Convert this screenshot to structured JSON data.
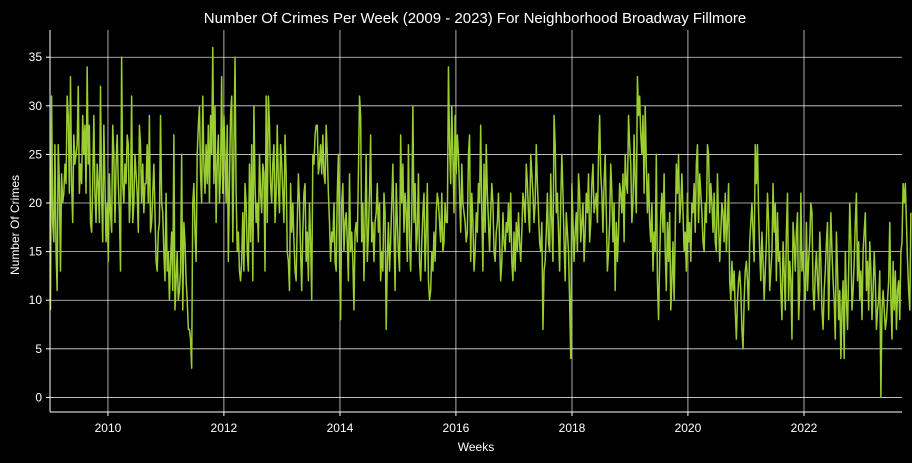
{
  "chart_data": {
    "type": "line",
    "title": "Number Of Crimes Per Week (2009 - 2023) For Neighborhood Broadway Fillmore",
    "xlabel": "Weeks",
    "ylabel": "Number Of Crimes",
    "x_start": "2009-01-04",
    "x_interval": "weekly",
    "xlim": [
      "2009-01-01",
      "2023-09-10"
    ],
    "ylim": [
      -1.5,
      37.8
    ],
    "x_ticks": [
      "2010",
      "2012",
      "2014",
      "2016",
      "2018",
      "2020",
      "2022"
    ],
    "y_ticks": [
      0,
      5,
      10,
      15,
      20,
      25,
      30,
      35
    ],
    "grid": true,
    "line_color": "#9acd32",
    "background": "#000000",
    "text_color": "#ffffff",
    "series": [
      {
        "values": [
          9,
          31,
          18,
          16,
          26,
          15,
          11,
          26,
          22,
          13,
          23,
          20,
          21,
          24,
          22,
          31,
          29,
          21,
          33,
          22,
          18,
          27,
          24,
          25,
          26,
          32,
          21,
          24,
          22,
          29,
          25,
          28,
          21,
          34,
          24,
          28,
          18,
          17,
          22,
          29,
          21,
          18,
          24,
          22,
          18,
          32,
          21,
          16,
          28,
          22,
          16,
          20,
          14,
          23,
          19,
          17,
          28,
          25,
          18,
          24,
          27,
          22,
          19,
          13,
          35,
          22,
          20,
          24,
          22,
          27,
          26,
          18,
          21,
          31,
          18,
          20,
          25,
          23,
          21,
          17,
          28,
          26,
          20,
          24,
          19,
          22,
          22,
          26,
          20,
          29,
          17,
          18,
          21,
          24,
          19,
          14,
          13,
          17,
          18,
          29,
          20,
          19,
          15,
          12,
          21,
          13,
          15,
          10,
          14,
          17,
          11,
          27,
          9,
          12,
          15,
          10,
          11,
          13,
          25,
          9,
          18,
          16,
          12,
          10,
          7,
          7,
          6,
          3,
          20,
          22,
          17,
          14,
          25,
          28,
          30,
          23,
          20,
          31,
          24,
          21,
          26,
          22,
          28,
          20,
          29,
          25,
          36,
          22,
          30,
          18,
          24,
          27,
          20,
          23,
          33,
          21,
          29,
          25,
          20,
          28,
          14,
          22,
          29,
          31,
          16,
          25,
          35,
          21,
          15,
          17,
          13,
          12,
          14,
          19,
          13,
          22,
          20,
          15,
          13,
          24,
          16,
          26,
          12,
          30,
          22,
          18,
          20,
          16,
          25,
          21,
          19,
          24,
          23,
          13,
          31,
          18,
          31,
          28,
          22,
          20,
          24,
          26,
          18,
          21,
          28,
          22,
          19,
          26,
          24,
          21,
          18,
          27,
          23,
          15,
          14,
          11,
          22,
          17,
          20,
          16,
          13,
          12,
          18,
          23,
          20,
          15,
          11,
          17,
          21,
          22,
          14,
          17,
          12,
          20,
          16,
          10,
          25,
          24,
          27,
          28,
          28,
          23,
          24,
          26,
          23,
          27,
          23,
          22,
          28,
          25,
          21,
          18,
          14,
          17,
          16,
          20,
          14,
          13,
          21,
          25,
          14,
          8,
          20,
          22,
          15,
          18,
          19,
          16,
          12,
          23,
          15,
          17,
          14,
          9,
          17,
          18,
          16,
          23,
          31,
          29,
          16,
          20,
          12,
          18,
          25,
          14,
          17,
          21,
          27,
          16,
          18,
          14,
          18,
          19,
          22,
          17,
          20,
          12,
          15,
          13,
          21,
          19,
          7,
          14,
          18,
          13,
          16,
          20,
          24,
          17,
          11,
          22,
          18,
          15,
          13,
          27,
          20,
          24,
          17,
          21,
          19,
          14,
          26,
          16,
          13,
          19,
          30,
          18,
          22,
          15,
          17,
          23,
          14,
          12,
          16,
          19,
          21,
          13,
          17,
          22,
          12,
          10,
          11,
          15,
          13,
          17,
          14,
          19,
          21,
          20,
          18,
          16,
          21,
          15,
          16,
          20,
          18,
          18,
          34,
          26,
          22,
          30,
          25,
          19,
          29,
          23,
          27,
          25,
          21,
          17,
          24,
          20,
          19,
          18,
          16,
          17,
          25,
          27,
          14,
          21,
          18,
          13,
          15,
          19,
          17,
          22,
          20,
          28,
          19,
          13,
          24,
          17,
          26,
          21,
          18,
          15,
          19,
          22,
          20,
          15,
          14,
          17,
          18,
          21,
          16,
          12,
          14,
          19,
          16,
          15,
          18,
          17,
          20,
          16,
          21,
          14,
          12,
          17,
          13,
          18,
          15,
          19,
          16,
          14,
          17,
          21,
          20,
          18,
          24,
          22,
          19,
          17,
          25,
          23,
          21,
          18,
          20,
          26,
          22,
          19,
          16,
          15,
          18,
          7,
          13,
          14,
          17,
          21,
          16,
          15,
          23,
          18,
          14,
          29,
          26,
          19,
          21,
          17,
          13,
          20,
          25,
          21,
          16,
          12,
          19,
          17,
          15,
          10,
          4,
          22,
          18,
          14,
          17,
          19,
          15,
          23,
          21,
          16,
          18,
          20,
          14,
          17,
          21,
          19,
          23,
          16,
          18,
          22,
          24,
          19,
          20,
          21,
          18,
          25,
          29,
          23,
          21,
          17,
          22,
          25,
          19,
          13,
          15,
          18,
          24,
          21,
          16,
          20,
          11,
          18,
          14,
          17,
          22,
          21,
          19,
          23,
          16,
          25,
          22,
          21,
          29,
          26,
          24,
          18,
          20,
          27,
          22,
          19,
          33,
          29,
          31,
          27,
          25,
          29,
          21,
          30,
          24,
          19,
          23,
          18,
          16,
          20,
          13,
          17,
          15,
          25,
          12,
          8,
          14,
          19,
          21,
          17,
          23,
          15,
          11,
          18,
          14,
          19,
          9,
          12,
          16,
          10,
          17,
          24,
          21,
          25,
          18,
          20,
          23,
          19,
          15,
          17,
          13,
          21,
          16,
          18,
          14,
          20,
          19,
          22,
          17,
          24,
          26,
          18,
          23,
          21,
          19,
          16,
          15,
          20,
          18,
          26,
          25,
          19,
          22,
          20,
          17,
          21,
          16,
          15,
          23,
          18,
          14,
          17,
          20,
          19,
          16,
          21,
          15,
          18,
          22,
          12,
          10,
          14,
          11,
          13,
          9,
          6,
          10,
          12,
          13,
          11,
          7,
          5,
          10,
          13,
          14,
          12,
          9,
          16,
          18,
          20,
          17,
          14,
          26,
          22,
          26,
          19,
          15,
          12,
          17,
          14,
          10,
          13,
          16,
          21,
          18,
          11,
          13,
          15,
          22,
          17,
          20,
          12,
          19,
          14,
          15,
          11,
          8,
          16,
          13,
          9,
          17,
          21,
          10,
          14,
          12,
          6,
          18,
          16,
          13,
          17,
          19,
          8,
          11,
          21,
          13,
          15,
          12,
          10,
          18,
          11,
          14,
          16,
          20,
          19,
          11,
          9,
          13,
          15,
          12,
          10,
          17,
          14,
          9,
          7,
          11,
          13,
          16,
          18,
          8,
          14,
          19,
          15,
          12,
          10,
          6,
          17,
          13,
          8,
          11,
          4,
          9,
          12,
          4,
          15,
          10,
          7,
          13,
          20,
          16,
          9,
          11,
          14,
          18,
          21,
          12,
          16,
          10,
          13,
          8,
          15,
          17,
          19,
          11,
          14,
          9,
          16,
          13,
          8,
          11,
          15,
          12,
          7,
          9,
          10,
          13,
          0,
          9,
          11,
          9,
          7,
          8,
          10,
          12,
          18,
          10,
          6,
          14,
          9,
          13,
          7,
          11,
          12,
          8,
          15,
          16,
          22,
          20,
          22,
          18,
          14,
          11,
          9,
          19
        ]
      }
    ]
  }
}
